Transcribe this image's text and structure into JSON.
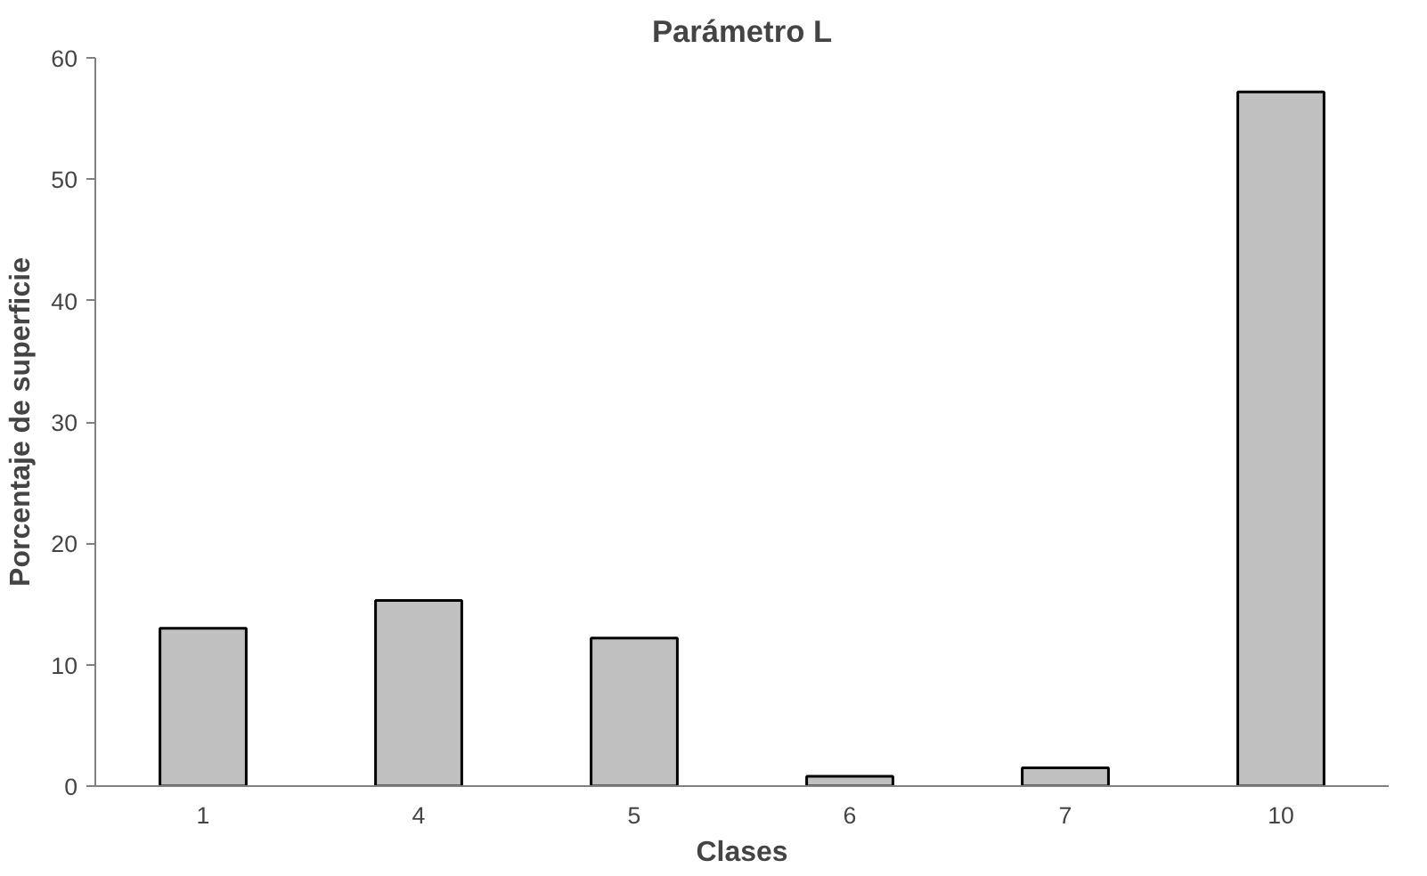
{
  "chart_data": {
    "type": "bar",
    "title": "Parámetro L",
    "xlabel": "Clases",
    "ylabel": "Porcentaje de superficie",
    "categories": [
      "1",
      "4",
      "5",
      "6",
      "7",
      "10"
    ],
    "values": [
      13.0,
      15.3,
      12.2,
      0.8,
      1.5,
      57.2
    ],
    "color": "#c0c0c0",
    "ylim": [
      0,
      60
    ],
    "yticks": [
      0,
      10,
      20,
      30,
      40,
      50,
      60
    ],
    "grid": false
  }
}
